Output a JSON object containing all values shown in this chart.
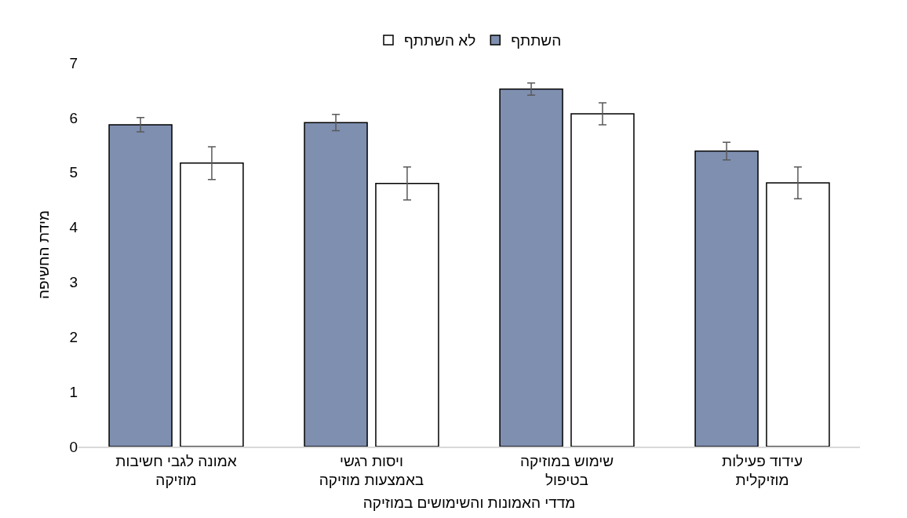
{
  "chart_data": {
    "type": "bar",
    "xlabel": "מדדי האמונות והשימושים במוזיקה",
    "ylabel": "מידת החשיפה",
    "categories": [
      "אמונה לגבי חשיבות מוזיקה",
      "ויסות רגשי באמצעות מוזיקה",
      "שימוש במוזיקה בטיפול",
      "עידוד פעילות מוזיקלית"
    ],
    "series": [
      {
        "name": "השתתף",
        "color": "#7f8fb0",
        "values": [
          5.87,
          5.91,
          6.52,
          5.39
        ],
        "errors": [
          0.13,
          0.15,
          0.11,
          0.16
        ]
      },
      {
        "name": "לא השתתף",
        "color": "#ffffff",
        "values": [
          5.17,
          4.8,
          6.07,
          4.81
        ],
        "errors": [
          0.3,
          0.3,
          0.2,
          0.29
        ]
      }
    ],
    "ylim": [
      0,
      7
    ],
    "yticks": [
      0,
      1,
      2,
      3,
      4,
      5,
      6,
      7
    ],
    "grid": false,
    "legend": "top"
  }
}
